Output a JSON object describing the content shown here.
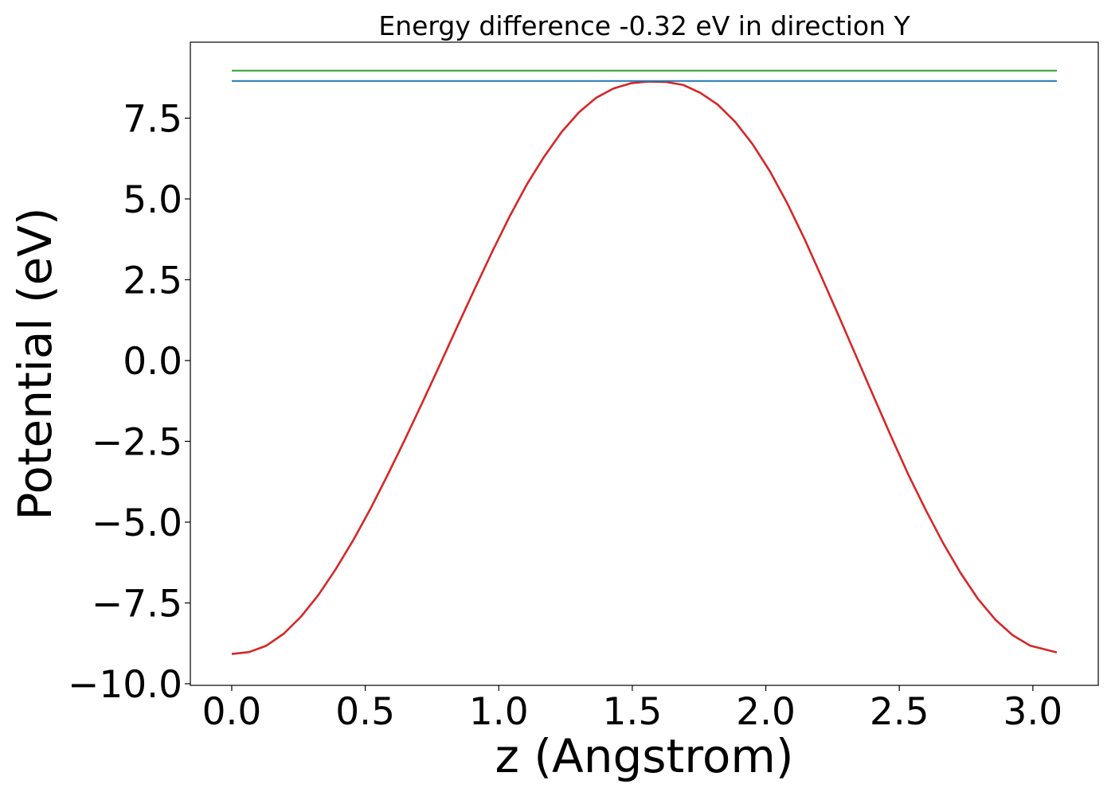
{
  "chart_data": {
    "type": "line",
    "title": "Energy difference -0.32 eV in direction Y",
    "xlabel": "z (Angstrom)",
    "ylabel": "Potential (eV)",
    "xlim": [
      -0.155,
      3.245
    ],
    "ylim": [
      -10.05,
      9.85
    ],
    "xticks": [
      0.0,
      0.5,
      1.0,
      1.5,
      2.0,
      2.5,
      3.0
    ],
    "xtick_labels": [
      "0.0",
      "0.5",
      "1.0",
      "1.5",
      "2.0",
      "2.5",
      "3.0"
    ],
    "yticks": [
      -10.0,
      -7.5,
      -5.0,
      -2.5,
      0.0,
      2.5,
      5.0,
      7.5
    ],
    "ytick_labels": [
      "−10.0",
      "−7.5",
      "−5.0",
      "−2.5",
      "0.0",
      "2.5",
      "5.0",
      "7.5"
    ],
    "grid": false,
    "series": [
      {
        "color": "#d62728",
        "x": [
          0.0,
          0.065,
          0.13,
          0.195,
          0.26,
          0.325,
          0.39,
          0.455,
          0.52,
          0.585,
          0.65,
          0.715,
          0.78,
          0.845,
          0.91,
          0.975,
          1.04,
          1.105,
          1.17,
          1.235,
          1.3,
          1.365,
          1.43,
          1.495,
          1.56,
          1.625,
          1.69,
          1.755,
          1.82,
          1.885,
          1.95,
          2.015,
          2.08,
          2.145,
          2.21,
          2.275,
          2.34,
          2.405,
          2.47,
          2.535,
          2.6,
          2.665,
          2.73,
          2.795,
          2.86,
          2.925,
          2.99,
          3.09
        ],
        "y": [
          -9.08,
          -9.02,
          -8.82,
          -8.45,
          -7.92,
          -7.25,
          -6.45,
          -5.56,
          -4.58,
          -3.52,
          -2.42,
          -1.28,
          -0.12,
          1.06,
          2.22,
          3.36,
          4.45,
          5.45,
          6.31,
          7.07,
          7.68,
          8.13,
          8.42,
          8.58,
          8.63,
          8.62,
          8.53,
          8.28,
          7.92,
          7.39,
          6.7,
          5.86,
          4.87,
          3.76,
          2.56,
          1.34,
          0.1,
          -1.14,
          -2.36,
          -3.55,
          -4.64,
          -5.66,
          -6.58,
          -7.38,
          -8.02,
          -8.5,
          -8.82,
          -9.03
        ]
      },
      {
        "color": "#1f77b4",
        "x": [
          0.0,
          3.09
        ],
        "y": [
          8.65,
          8.65
        ]
      },
      {
        "color": "#2ca02c",
        "x": [
          0.0,
          3.09
        ],
        "y": [
          8.97,
          8.97
        ]
      }
    ]
  }
}
